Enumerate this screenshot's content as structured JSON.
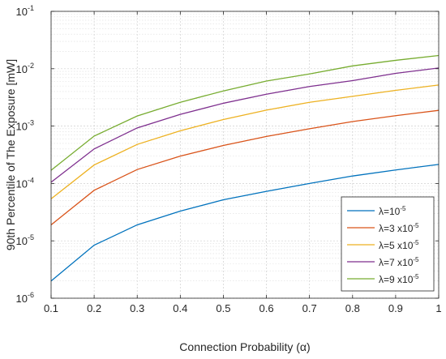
{
  "chart_data": {
    "type": "line",
    "xlabel": "Connection Probability (α)",
    "ylabel": "90th Percentile of The Exposure [mW]",
    "xlim": [
      0.1,
      1
    ],
    "ylim": [
      1e-06,
      0.1
    ],
    "yscale": "log",
    "grid": true,
    "legend_position": "bottom-right",
    "x": [
      0.1,
      0.2,
      0.3,
      0.4,
      0.5,
      0.6,
      0.7,
      0.8,
      0.9,
      1.0
    ],
    "x_ticks": [
      "0.1",
      "0.2",
      "0.3",
      "0.4",
      "0.5",
      "0.6",
      "0.7",
      "0.8",
      "0.9",
      "1"
    ],
    "y_ticks": [
      {
        "base": "10",
        "exp": "-6"
      },
      {
        "base": "10",
        "exp": "-5"
      },
      {
        "base": "10",
        "exp": "-4"
      },
      {
        "base": "10",
        "exp": "-3"
      },
      {
        "base": "10",
        "exp": "-2"
      },
      {
        "base": "10",
        "exp": "-1"
      }
    ],
    "series": [
      {
        "label": {
          "lambda": "λ",
          "coef": "=10",
          "exp": "-5"
        },
        "color": "#0072BD",
        "values": [
          2e-06,
          8.4e-06,
          1.9e-05,
          3.3e-05,
          5.2e-05,
          7.3e-05,
          0.0001,
          0.000135,
          0.000172,
          0.000215
        ]
      },
      {
        "label": {
          "lambda": "λ",
          "coef": "=3 x10",
          "exp": "-5"
        },
        "color": "#D95319",
        "values": [
          1.9e-05,
          7.6e-05,
          0.000175,
          0.0003,
          0.00046,
          0.00066,
          0.0009,
          0.0012,
          0.00152,
          0.00188
        ]
      },
      {
        "label": {
          "lambda": "λ",
          "coef": "=5 x10",
          "exp": "-5"
        },
        "color": "#EDB120",
        "values": [
          5.4e-05,
          0.00021,
          0.00048,
          0.00083,
          0.0013,
          0.0019,
          0.0026,
          0.0033,
          0.0042,
          0.0052
        ]
      },
      {
        "label": {
          "lambda": "λ",
          "coef": "=7 x10",
          "exp": "-5"
        },
        "color": "#7E2F8E",
        "values": [
          0.000105,
          0.0004,
          0.00093,
          0.0016,
          0.0025,
          0.0036,
          0.0049,
          0.0062,
          0.0083,
          0.0103
        ]
      },
      {
        "label": {
          "lambda": "λ",
          "coef": "=9 x10",
          "exp": "-5"
        },
        "color": "#77AC30",
        "values": [
          0.00017,
          0.00067,
          0.0015,
          0.0026,
          0.0041,
          0.0061,
          0.0081,
          0.0112,
          0.014,
          0.017
        ]
      }
    ]
  }
}
